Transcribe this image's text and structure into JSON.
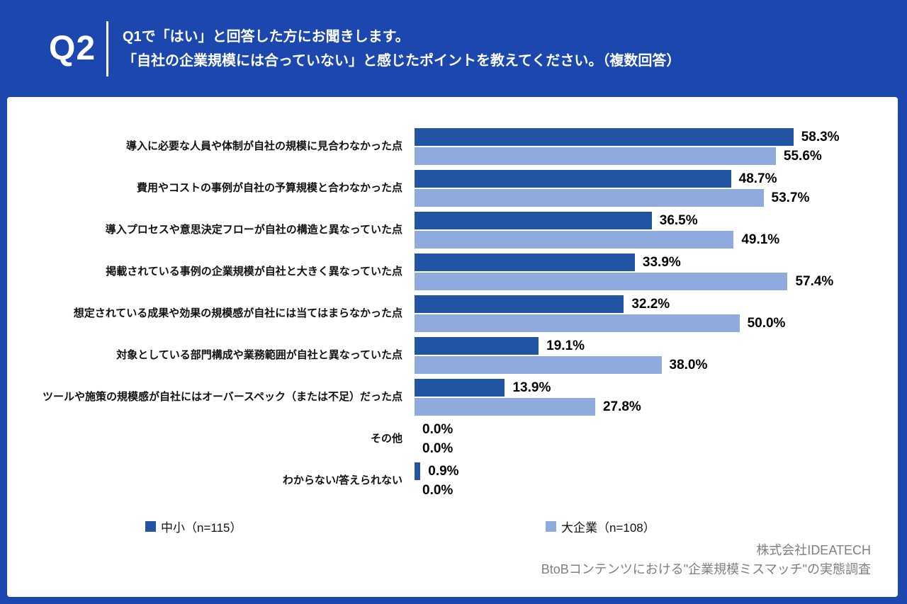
{
  "header": {
    "q_label": "Q2",
    "title_line1": "Q1で「はい」と回答した方にお聞きします。",
    "title_line2": "「自社の企業規模には合っていない」と感じたポイントを教えてください。（複数回答）"
  },
  "colors": {
    "background_blue": "#1b47ae",
    "series_small_company": "#2155a4",
    "series_large_company": "#8faadc",
    "footer_gray": "#7f7f7f"
  },
  "chart_data": {
    "type": "bar",
    "orientation": "horizontal",
    "title": "",
    "xlabel": "",
    "ylabel": "",
    "xlim": [
      0,
      70
    ],
    "grid": false,
    "legend_position": "bottom",
    "value_format": "0.0%",
    "categories": [
      "導入に必要な人員や体制が自社の規模に見合わなかった点",
      "費用やコストの事例が自社の予算規模と合わなかった点",
      "導入プロセスや意思決定フローが自社の構造と異なっていた点",
      "掲載されている事例の企業規模が自社と大きく異なっていた点",
      "想定されている成果や効果の規模感が自社には当てはまらなかった点",
      "対象としている部門構成や業務範囲が自社と異なっていた点",
      "ツールや施策の規模感が自社にはオーバースペック（または不足）だった点",
      "その他",
      "わからない/答えられない"
    ],
    "series": [
      {
        "name": "中小（n=115）",
        "color": "#2155a4",
        "values": [
          58.3,
          48.7,
          36.5,
          33.9,
          32.2,
          19.1,
          13.9,
          0.0,
          0.9
        ]
      },
      {
        "name": "大企業（n=108）",
        "color": "#8faadc",
        "values": [
          55.6,
          53.7,
          49.1,
          57.4,
          50.0,
          38.0,
          27.8,
          0.0,
          0.0
        ]
      }
    ]
  },
  "legend": {
    "items": [
      {
        "label": "中小（n=115）"
      },
      {
        "label": "大企業（n=108）"
      }
    ]
  },
  "footer": {
    "line1": "株式会社IDEATECH",
    "line2": "BtoBコンテンツにおける\"企業規模ミスマッチ\"の実態調査"
  }
}
